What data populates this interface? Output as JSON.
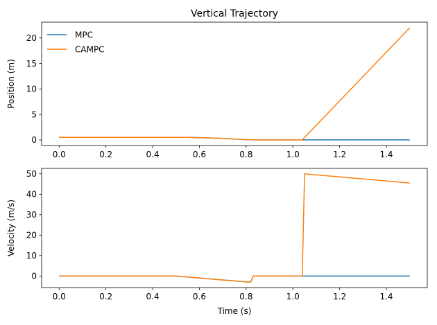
{
  "chart_data": [
    {
      "type": "line",
      "title": "Vertical Trajectory",
      "xlabel": "",
      "ylabel": "Position (m)",
      "xlim": [
        -0.075,
        1.575
      ],
      "ylim": [
        -1.1,
        23.1
      ],
      "xticks": [
        0.0,
        0.2,
        0.4,
        0.6,
        0.8,
        1.0,
        1.2,
        1.4
      ],
      "xtick_labels": [
        "0.0",
        "0.2",
        "0.4",
        "0.6",
        "0.8",
        "1.0",
        "1.2",
        "1.4"
      ],
      "yticks": [
        0,
        5,
        10,
        15,
        20
      ],
      "ytick_labels": [
        "0",
        "5",
        "10",
        "15",
        "20"
      ],
      "legend": {
        "placement": "upper-left",
        "frame": false
      },
      "series": [
        {
          "name": "MPC",
          "color": "#1f77b4",
          "x": [
            0.0,
            0.55,
            0.6,
            0.7,
            0.8,
            0.83,
            1.04,
            1.5
          ],
          "y": [
            0.5,
            0.5,
            0.45,
            0.3,
            0.05,
            0.0,
            0.0,
            0.0
          ]
        },
        {
          "name": "CAMPC",
          "color": "#ff7f0e",
          "x": [
            0.0,
            0.55,
            0.6,
            0.7,
            0.8,
            0.83,
            1.04,
            1.5
          ],
          "y": [
            0.5,
            0.5,
            0.45,
            0.3,
            0.05,
            0.0,
            0.0,
            22.0
          ]
        }
      ]
    },
    {
      "type": "line",
      "title": "",
      "xlabel": "Time (s)",
      "ylabel": "Velocity (m/s)",
      "xlim": [
        -0.075,
        1.575
      ],
      "ylim": [
        -5.65,
        52.65
      ],
      "xticks": [
        0.0,
        0.2,
        0.4,
        0.6,
        0.8,
        1.0,
        1.2,
        1.4
      ],
      "xtick_labels": [
        "0.0",
        "0.2",
        "0.4",
        "0.6",
        "0.8",
        "1.0",
        "1.2",
        "1.4"
      ],
      "yticks": [
        0,
        10,
        20,
        30,
        40,
        50
      ],
      "ytick_labels": [
        "0",
        "10",
        "20",
        "30",
        "40",
        "50"
      ],
      "series": [
        {
          "name": "MPC",
          "color": "#1f77b4",
          "x": [
            0.0,
            0.5,
            0.81,
            0.82,
            0.83,
            1.04,
            1.5
          ],
          "y": [
            0.0,
            0.0,
            -3.0,
            -2.9,
            0.0,
            0.0,
            0.0
          ]
        },
        {
          "name": "CAMPC",
          "color": "#ff7f0e",
          "x": [
            0.0,
            0.5,
            0.81,
            0.82,
            0.83,
            1.04,
            1.05,
            1.5
          ],
          "y": [
            0.0,
            0.0,
            -3.0,
            -2.9,
            0.0,
            0.0,
            50.0,
            45.5
          ]
        }
      ]
    }
  ]
}
